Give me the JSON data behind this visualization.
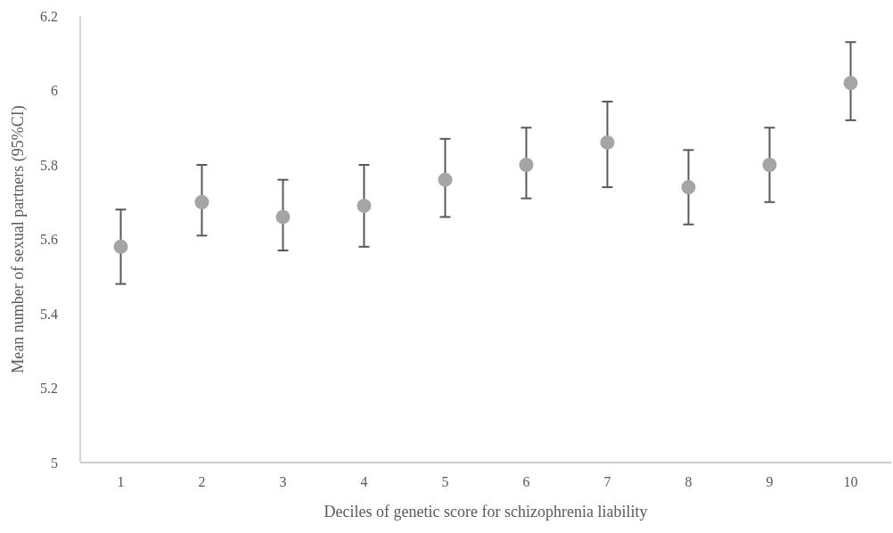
{
  "chart_data": {
    "type": "scatter",
    "xlabel": "Deciles of genetic score for schizophrenia liability",
    "ylabel": "Mean number of sexual partners (95%CI)",
    "categories": [
      "1",
      "2",
      "3",
      "4",
      "5",
      "6",
      "7",
      "8",
      "9",
      "10"
    ],
    "series": [
      {
        "color": "#a5a5a5",
        "values": [
          5.58,
          5.7,
          5.66,
          5.69,
          5.76,
          5.8,
          5.86,
          5.74,
          5.8,
          6.02
        ],
        "errors": [
          [
            5.48,
            5.68
          ],
          [
            5.61,
            5.8
          ],
          [
            5.57,
            5.76
          ],
          [
            5.58,
            5.8
          ],
          [
            5.66,
            5.87
          ],
          [
            5.71,
            5.9
          ],
          [
            5.74,
            5.97
          ],
          [
            5.64,
            5.84
          ],
          [
            5.7,
            5.9
          ],
          [
            5.92,
            6.13
          ]
        ]
      }
    ],
    "ylim": [
      5,
      6.2
    ],
    "yticks": [
      5,
      5.2,
      5.4,
      5.6,
      5.8,
      6,
      6.2
    ],
    "marker": "circle",
    "grid": false
  }
}
